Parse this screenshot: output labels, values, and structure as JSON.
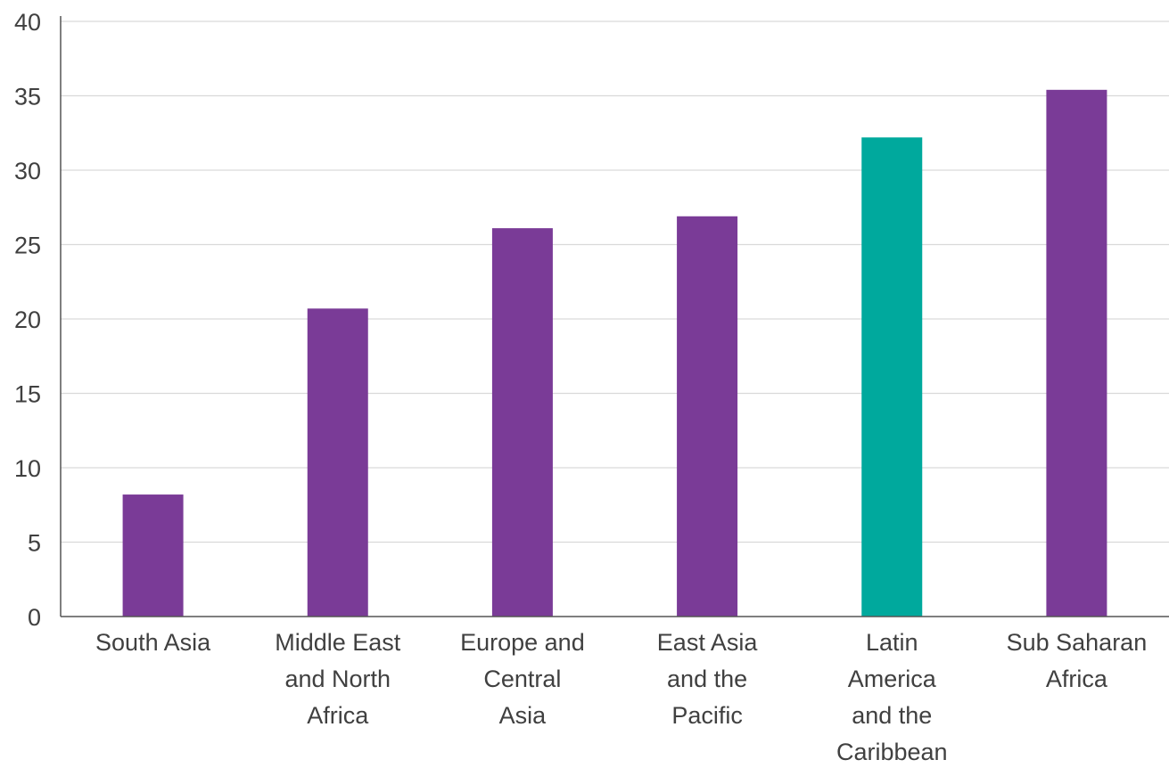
{
  "chart_data": {
    "type": "bar",
    "categories": [
      [
        "South Asia"
      ],
      [
        "Middle East",
        "and North",
        "Africa"
      ],
      [
        "Europe and",
        "Central",
        "Asia"
      ],
      [
        "East Asia",
        "and the",
        "Pacific"
      ],
      [
        "Latin",
        "America",
        "and the",
        "Caribbean"
      ],
      [
        "Sub Saharan",
        "Africa"
      ]
    ],
    "category_names": [
      "South Asia",
      "Middle East and North Africa",
      "Europe and Central Asia",
      "East Asia and the Pacific",
      "Latin America and the Caribbean",
      "Sub Saharan Africa"
    ],
    "values": [
      8.2,
      20.7,
      26.1,
      26.9,
      32.2,
      35.4
    ],
    "bar_colors": [
      "#7a3b97",
      "#7a3b97",
      "#7a3b97",
      "#7a3b97",
      "#00a99d",
      "#7a3b97"
    ],
    "ylim": [
      0,
      40
    ],
    "yticks": [
      0,
      5,
      10,
      15,
      20,
      25,
      30,
      35,
      40
    ],
    "grid": true,
    "title": "",
    "xlabel": "",
    "ylabel": ""
  }
}
